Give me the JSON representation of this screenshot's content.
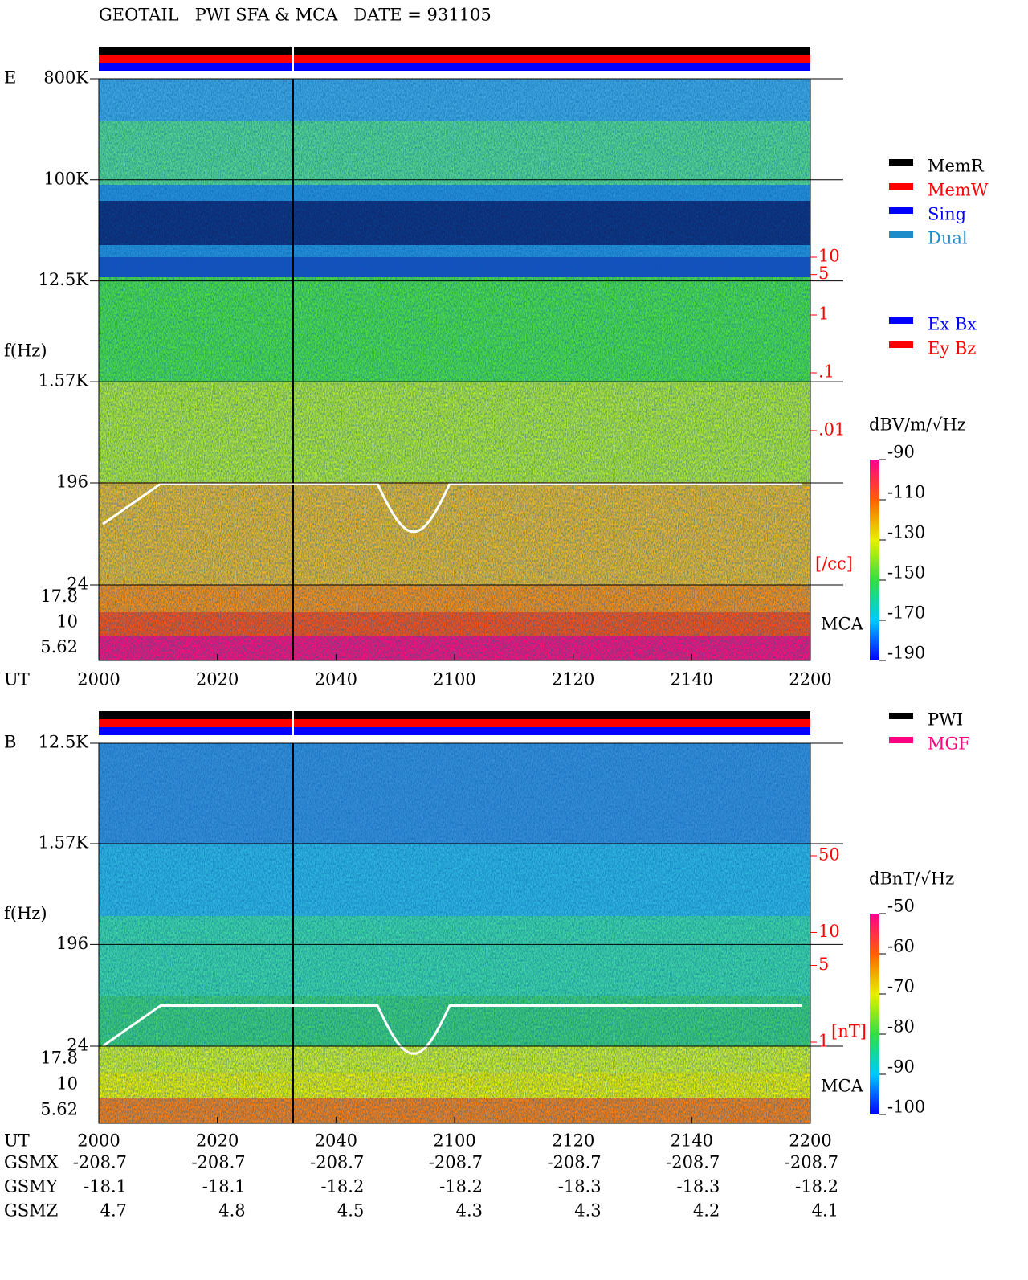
{
  "chart_data": [
    {
      "type": "spectrogram",
      "title": "GEOTAIL   PWI SFA & MCA   DATE = 931105",
      "label": "E",
      "ylabel": "f(Hz)",
      "log": true,
      "ylim": [
        24,
        800000
      ],
      "yticks": [
        {
          "value": 800000,
          "label": "800K"
        },
        {
          "value": 100000,
          "label": "100K"
        },
        {
          "value": 12500,
          "label": "12.5K"
        },
        {
          "value": 1570,
          "label": "1.57K"
        },
        196,
        24
      ],
      "mca_ticks": [
        17.8,
        10,
        5.62
      ],
      "mca_label": "MCA",
      "xlabel": "UT",
      "x_labels": [
        "2000",
        "2020",
        "2040",
        "2100",
        "2120",
        "2140",
        "2200"
      ],
      "y2ticks": [
        10,
        5,
        1,
        {
          "value": 0.1,
          "label": ".1"
        },
        {
          "value": 0.01,
          "label": ".01"
        }
      ],
      "y2label": "[/cc]",
      "y2color": "#ff0000",
      "colorbar": {
        "label": "dBV/m/√Hz",
        "lim": [
          -190,
          -90
        ],
        "ticks": [
          -90,
          -110,
          -130,
          -150,
          -170,
          -190
        ]
      },
      "legends": [
        [
          {
            "name": "MemR",
            "color": "#000000"
          },
          {
            "name": "MemW",
            "color": "#ff0000"
          },
          {
            "name": "Sing",
            "color": "#0000ff"
          },
          {
            "name": "Dual",
            "color": "#1e8cc8"
          }
        ],
        [
          {
            "name": "Ex Bx",
            "color": "#0000ff"
          },
          {
            "name": "Ey Bz",
            "color": "#ff0000"
          }
        ]
      ]
    },
    {
      "type": "spectrogram",
      "label": "B",
      "ylabel": "f(Hz)",
      "log": true,
      "ylim": [
        24,
        12500
      ],
      "yticks": [
        {
          "value": 12500,
          "label": "12.5K"
        },
        {
          "value": 1570,
          "label": "1.57K"
        },
        196,
        24
      ],
      "mca_ticks": [
        17.8,
        10,
        5.62
      ],
      "mca_label": "MCA",
      "xlabel": "UT",
      "x_labels": [
        "2000",
        "2020",
        "2040",
        "2100",
        "2120",
        "2140",
        "2200"
      ],
      "y2ticks": [
        50,
        10,
        5,
        1
      ],
      "y2label": "[nT]",
      "y2color": "#ff0000",
      "colorbar": {
        "label": "dBnT/√Hz",
        "lim": [
          -100,
          -50
        ],
        "ticks": [
          -50,
          -60,
          -70,
          -80,
          -90,
          -100
        ]
      },
      "legends": [
        [
          {
            "name": "PWI",
            "color": "#000000"
          },
          {
            "name": "MGF",
            "color": "#ff0080"
          }
        ]
      ],
      "orbit": {
        "labels": [
          "GSMX",
          "GSMY",
          "GSMZ"
        ],
        "rows": [
          [
            -208.7,
            -208.7,
            -208.7,
            -208.7,
            -208.7,
            -208.7,
            -208.7
          ],
          [
            -18.1,
            -18.1,
            -18.2,
            -18.2,
            -18.3,
            -18.3,
            -18.2
          ],
          [
            4.7,
            4.8,
            4.5,
            4.3,
            4.3,
            4.2,
            4.1
          ]
        ]
      }
    }
  ]
}
